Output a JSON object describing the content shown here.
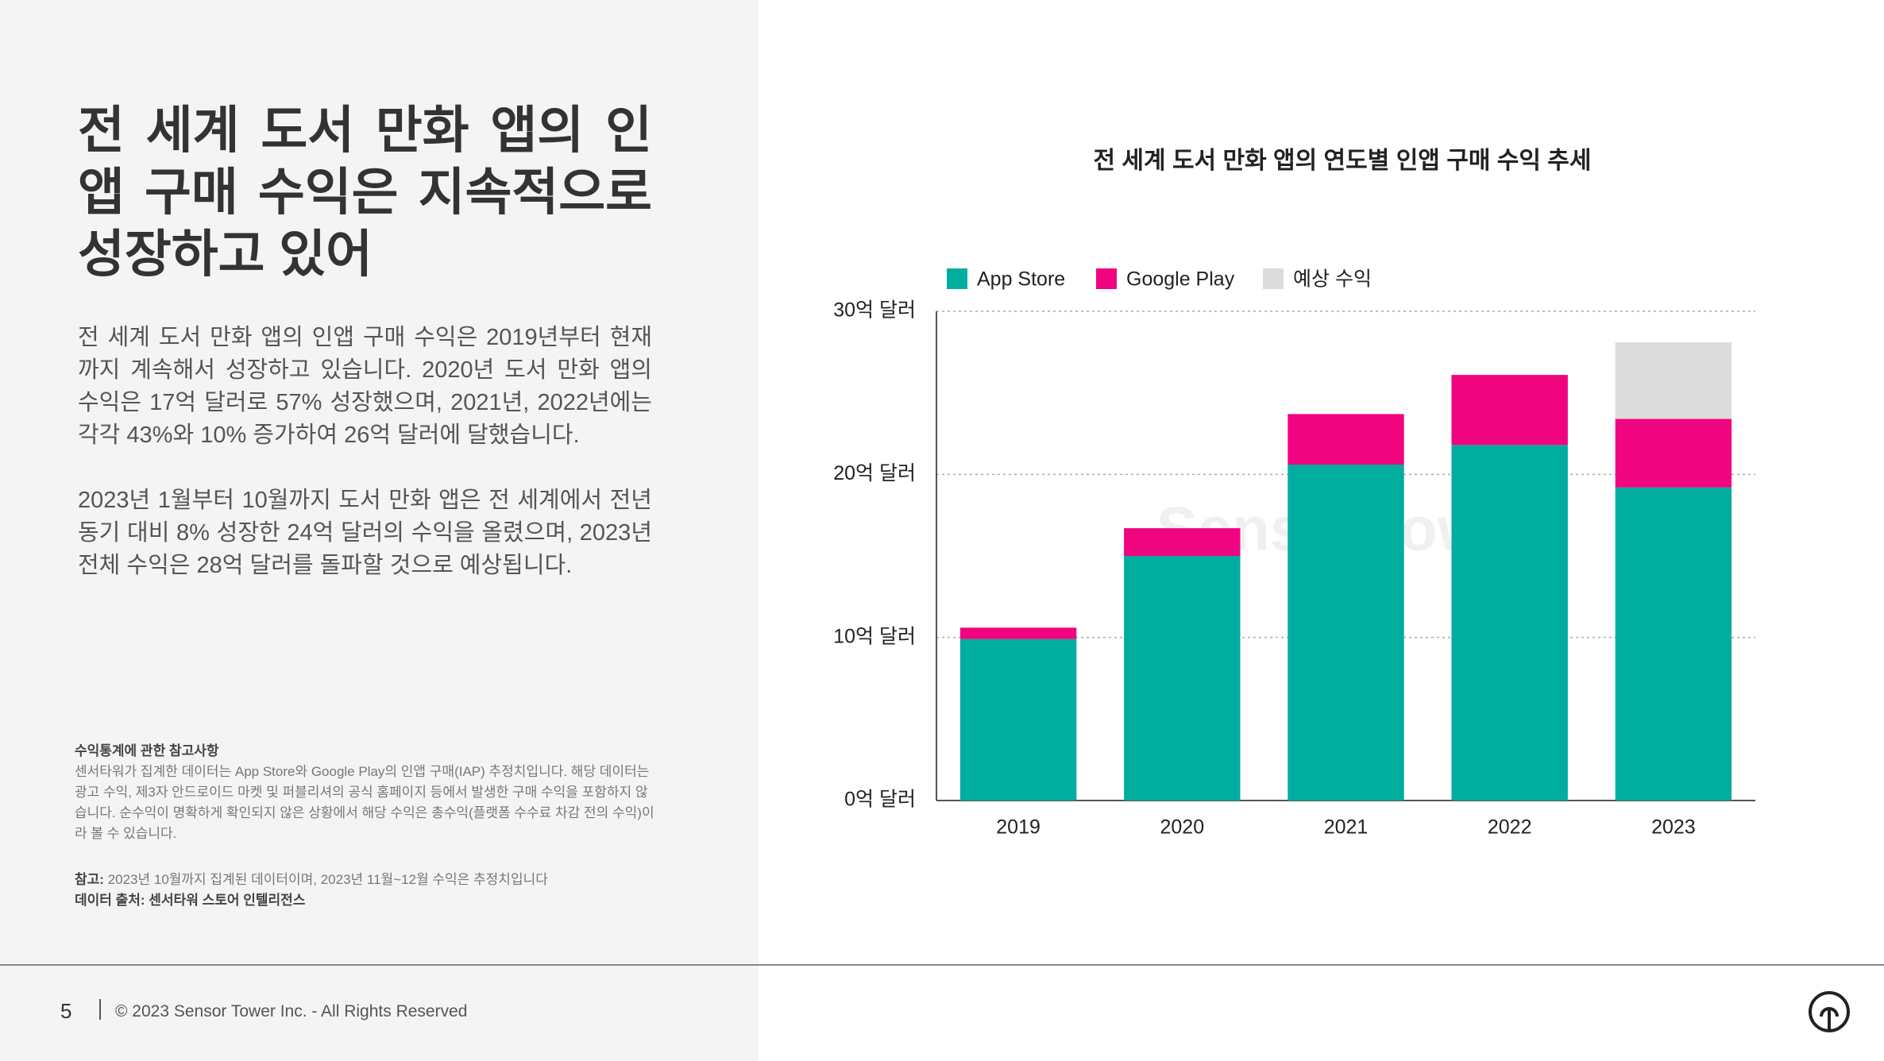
{
  "slide": {
    "title": "전 세계 도서 만화 앱의 인앱 구매 수익은 지속적으로 성장하고 있어",
    "paragraphs": [
      "전 세계 도서 만화 앱의 인앱 구매 수익은 2019년부터 현재까지 계속해서 성장하고 있습니다. 2020년 도서 만화 앱의 수익은 17억 달러로 57% 성장했으며, 2021년, 2022년에는 각각 43%와 10% 증가하여 26억 달러에 달했습니다.",
      "2023년 1월부터 10월까지 도서 만화 앱은 전 세계에서 전년 동기 대비 8% 성장한 24억 달러의 수익을 올렸으며, 2023년 전체 수익은 28억 달러를 돌파할 것으로 예상됩니다."
    ],
    "notes_title": "수익통계에 관한 참고사항",
    "notes_body": "센서타워가 집계한 데이터는 App Store와 Google Play의 인앱 구매(IAP) 추정치입니다. 해당 데이터는 광고 수익, 제3자 안드로이드 마켓 및 퍼블리셔의 공식 홈페이지 등에서 발생한 구매 수익을 포함하지 않습니다. 순수익이 명확하게 확인되지 않은 상황에서 해당 수익은 총수익(플랫폼 수수료 차감 전의 수익)이라 볼 수 있습니다.",
    "note_label": "참고:",
    "note_text": "2023년 10월까지 집계된 데이터이며, 2023년 11월~12월 수익은 추정치입니다",
    "source": "데이터 출처: 센서타워 스토어 인텔리전스",
    "page_number": "5",
    "copyright": "© 2023 Sensor Tower Inc. - All Rights Reserved",
    "watermark": "SensorTower"
  },
  "chart_data": {
    "type": "stacked_bar",
    "title": "전 세계 도서 만화 앱의 연도별 인앱 구매 수익 추세",
    "categories": [
      "2019",
      "2020",
      "2021",
      "2022",
      "2023"
    ],
    "series": [
      {
        "name": "App Store",
        "color": "#00ad9f",
        "values": [
          9.9,
          15.0,
          20.6,
          21.8,
          19.2
        ]
      },
      {
        "name": "Google Play",
        "color": "#f0047f",
        "values": [
          0.7,
          1.7,
          3.1,
          4.3,
          4.2
        ]
      },
      {
        "name": "예상 수익",
        "color": "#dcdcdc",
        "values": [
          null,
          null,
          null,
          null,
          4.7
        ]
      }
    ],
    "ylim": [
      0,
      30
    ],
    "yticks": [
      {
        "value": 0,
        "label": "0억 달러"
      },
      {
        "value": 10,
        "label": "10억 달러"
      },
      {
        "value": 20,
        "label": "20억 달러"
      },
      {
        "value": 30,
        "label": "30억 달러"
      }
    ],
    "grid": true,
    "legend": "top"
  }
}
